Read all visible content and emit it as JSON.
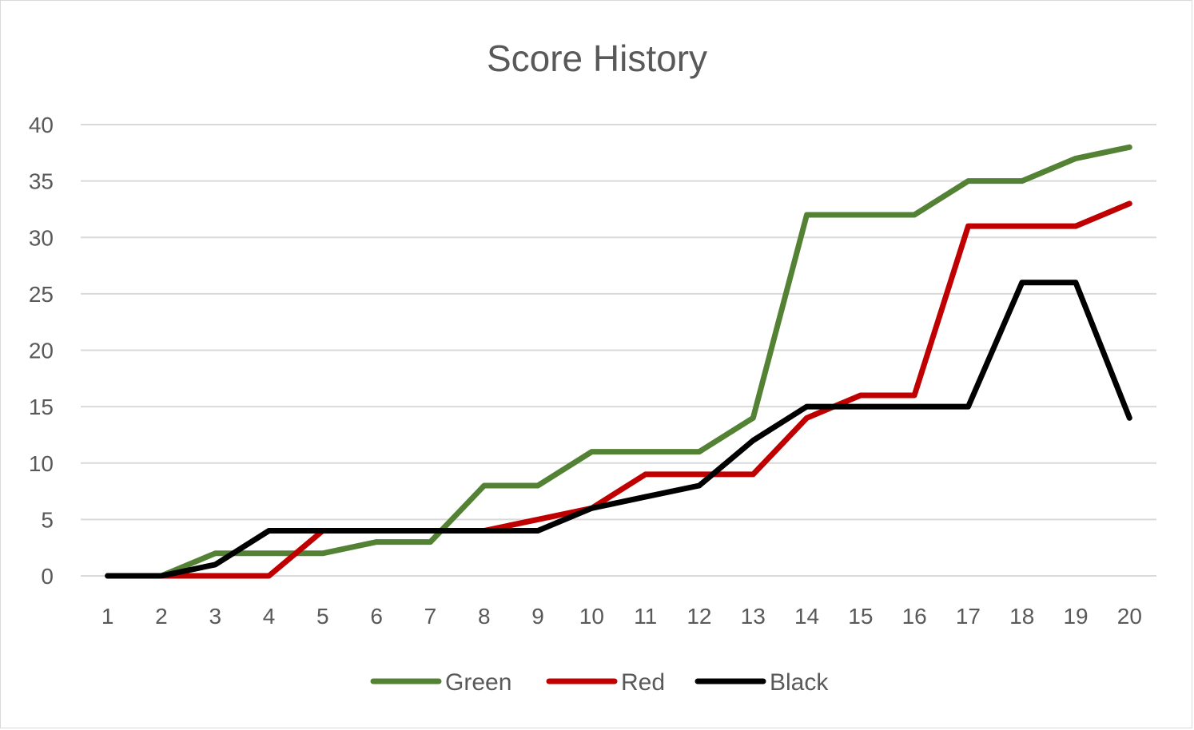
{
  "chart_data": {
    "type": "line",
    "title": "Score History",
    "xlabel": "",
    "ylabel": "",
    "categories": [
      "1",
      "2",
      "3",
      "4",
      "5",
      "6",
      "7",
      "8",
      "9",
      "10",
      "11",
      "12",
      "13",
      "14",
      "15",
      "16",
      "17",
      "18",
      "19",
      "20"
    ],
    "y_ticks": [
      "0",
      "5",
      "10",
      "15",
      "20",
      "25",
      "30",
      "35",
      "40"
    ],
    "ylim": [
      0,
      40
    ],
    "grid": true,
    "legend_position": "bottom",
    "series": [
      {
        "name": "Green",
        "color": "#548235",
        "values": [
          0,
          0,
          2,
          2,
          2,
          3,
          3,
          8,
          8,
          11,
          11,
          11,
          14,
          32,
          32,
          32,
          35,
          35,
          37,
          38
        ]
      },
      {
        "name": "Red",
        "color": "#c00000",
        "values": [
          0,
          0,
          0,
          0,
          4,
          4,
          4,
          4,
          5,
          6,
          9,
          9,
          9,
          14,
          16,
          16,
          31,
          31,
          31,
          33
        ]
      },
      {
        "name": "Black",
        "color": "#000000",
        "values": [
          0,
          0,
          1,
          4,
          4,
          4,
          4,
          4,
          4,
          6,
          7,
          8,
          12,
          15,
          15,
          15,
          15,
          26,
          26,
          14
        ]
      }
    ]
  }
}
